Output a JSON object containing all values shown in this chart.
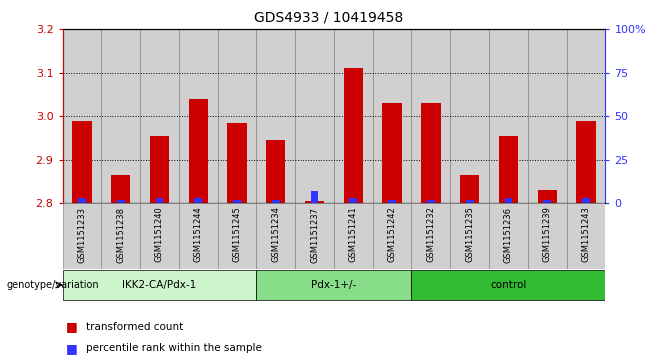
{
  "title": "GDS4933 / 10419458",
  "samples": [
    "GSM1151233",
    "GSM1151238",
    "GSM1151240",
    "GSM1151244",
    "GSM1151245",
    "GSM1151234",
    "GSM1151237",
    "GSM1151241",
    "GSM1151242",
    "GSM1151232",
    "GSM1151235",
    "GSM1151236",
    "GSM1151239",
    "GSM1151243"
  ],
  "red_values": [
    2.99,
    2.865,
    2.955,
    3.04,
    2.985,
    2.945,
    2.805,
    3.11,
    3.03,
    3.03,
    2.865,
    2.955,
    2.83,
    2.99
  ],
  "blue_percentiles": [
    3,
    2,
    3,
    3,
    2,
    2,
    7,
    3,
    2,
    2,
    2,
    3,
    2,
    3
  ],
  "groups": [
    {
      "label": "IKK2-CA/Pdx-1",
      "start": 0,
      "end": 5,
      "color": "#ccf5cc"
    },
    {
      "label": "Pdx-1+/-",
      "start": 5,
      "end": 9,
      "color": "#88dd88"
    },
    {
      "label": "control",
      "start": 9,
      "end": 14,
      "color": "#33bb33"
    }
  ],
  "ymin": 2.8,
  "ymax": 3.2,
  "yticks": [
    2.8,
    2.9,
    3.0,
    3.1,
    3.2
  ],
  "right_yticks": [
    0,
    25,
    50,
    75,
    100
  ],
  "right_yticklabels": [
    "0",
    "25",
    "50",
    "75",
    "100%"
  ],
  "bar_color_red": "#cc0000",
  "bar_color_blue": "#3333ff",
  "cell_bg": "#d0d0d0",
  "plot_bg": "#ffffff",
  "title_fontsize": 10,
  "tick_fontsize": 8,
  "genotype_label": "genotype/variation",
  "legend_red": "transformed count",
  "legend_blue": "percentile rank within the sample"
}
